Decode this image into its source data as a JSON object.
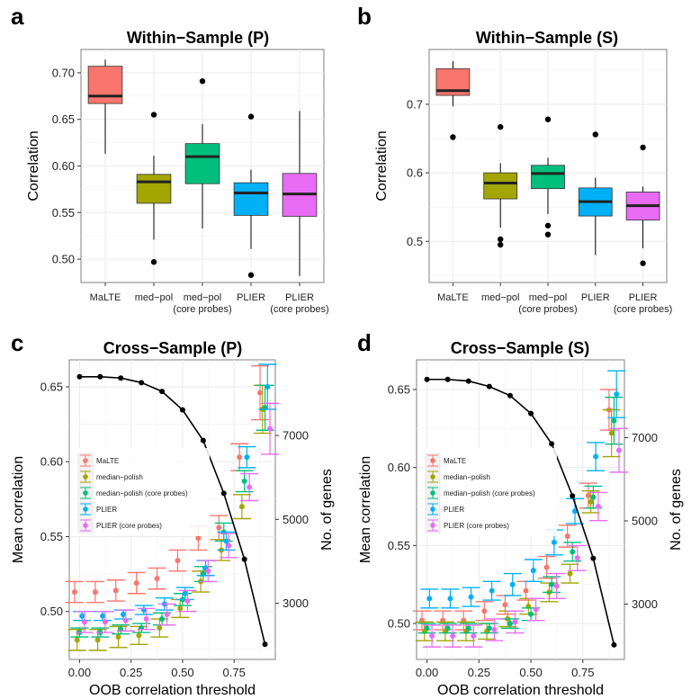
{
  "chart_data": [
    {
      "panel": "a",
      "type": "box",
      "title": "Within−Sample (P)",
      "ylabel": "Correlation",
      "ylim": [
        0.475,
        0.725
      ],
      "yticks": [
        "0.50",
        "0.55",
        "0.60",
        "0.65",
        "0.70"
      ],
      "categories": [
        [
          "MaLTE"
        ],
        [
          "med−pol"
        ],
        [
          "med−pol",
          "(core probes)"
        ],
        [
          "PLIER"
        ],
        [
          "PLIER",
          "(core probes)"
        ]
      ],
      "boxes": [
        {
          "color": "#F8766D",
          "whislo": 0.613,
          "q1": 0.667,
          "med": 0.675,
          "q3": 0.707,
          "whishi": 0.714,
          "outliers": []
        },
        {
          "color": "#A3A500",
          "whislo": 0.521,
          "q1": 0.56,
          "med": 0.583,
          "q3": 0.591,
          "whishi": 0.611,
          "outliers": [
            0.655,
            0.497
          ]
        },
        {
          "color": "#00BF7D",
          "whislo": 0.533,
          "q1": 0.581,
          "med": 0.61,
          "q3": 0.624,
          "whishi": 0.645,
          "outliers": [
            0.691
          ]
        },
        {
          "color": "#00B0F6",
          "whislo": 0.511,
          "q1": 0.547,
          "med": 0.571,
          "q3": 0.582,
          "whishi": 0.596,
          "outliers": [
            0.653,
            0.483
          ]
        },
        {
          "color": "#E76BF3",
          "whislo": 0.482,
          "q1": 0.546,
          "med": 0.57,
          "q3": 0.592,
          "whishi": 0.659,
          "outliers": []
        }
      ]
    },
    {
      "panel": "b",
      "type": "box",
      "title": "Within−Sample (S)",
      "ylabel": "Correlation",
      "ylim": [
        0.44,
        0.78
      ],
      "yticks": [
        "0.5",
        "0.6",
        "0.7"
      ],
      "categories": [
        [
          "MaLTE"
        ],
        [
          "med−pol"
        ],
        [
          "med−pol",
          "(core probes)"
        ],
        [
          "PLIER"
        ],
        [
          "PLIER",
          "(core probes)"
        ]
      ],
      "boxes": [
        {
          "color": "#F8766D",
          "whislo": 0.697,
          "q1": 0.713,
          "med": 0.72,
          "q3": 0.752,
          "whishi": 0.763,
          "outliers": [
            0.652
          ]
        },
        {
          "color": "#A3A500",
          "whislo": 0.52,
          "q1": 0.562,
          "med": 0.585,
          "q3": 0.6,
          "whishi": 0.614,
          "outliers": [
            0.667,
            0.503,
            0.495
          ]
        },
        {
          "color": "#00BF7D",
          "whislo": 0.54,
          "q1": 0.577,
          "med": 0.599,
          "q3": 0.611,
          "whishi": 0.622,
          "outliers": [
            0.678,
            0.523,
            0.51
          ]
        },
        {
          "color": "#00B0F6",
          "whislo": 0.48,
          "q1": 0.537,
          "med": 0.558,
          "q3": 0.578,
          "whishi": 0.593,
          "outliers": [
            0.656
          ]
        },
        {
          "color": "#E76BF3",
          "whislo": 0.49,
          "q1": 0.531,
          "med": 0.552,
          "q3": 0.572,
          "whishi": 0.58,
          "outliers": [
            0.637,
            0.468
          ]
        }
      ]
    },
    {
      "panel": "c",
      "type": "scatter",
      "title": "Cross−Sample (P)",
      "xlabel": "OOB correlation threshold",
      "ylabel": "Mean correlation",
      "y2label": "No. of genes",
      "xlim": [
        -0.05,
        0.95
      ],
      "ylim": [
        0.468,
        0.668
      ],
      "xticks": [
        "0.00",
        "0.25",
        "0.50",
        "0.75"
      ],
      "yticks": [
        "0.50",
        "0.55",
        "0.60",
        "0.65"
      ],
      "y2ticks": [
        "3000",
        "5000",
        "7000"
      ],
      "y2range": [
        1662,
        8803
      ],
      "x": [
        0.0,
        0.1,
        0.2,
        0.3,
        0.4,
        0.5,
        0.6,
        0.7,
        0.8,
        0.9
      ],
      "series": [
        {
          "name": "MaLTE",
          "color": "#F8766D",
          "values": [
            0.513,
            0.513,
            0.514,
            0.519,
            0.522,
            0.534,
            0.549,
            0.556,
            0.603,
            0.646
          ],
          "errors": [
            0.007,
            0.007,
            0.007,
            0.007,
            0.007,
            0.007,
            0.008,
            0.008,
            0.009,
            0.018
          ]
        },
        {
          "name": "median−polish",
          "color": "#A3A500",
          "values": [
            0.481,
            0.481,
            0.483,
            0.484,
            0.489,
            0.502,
            0.52,
            0.541,
            0.57,
            0.635
          ],
          "errors": [
            0.007,
            0.007,
            0.007,
            0.006,
            0.006,
            0.006,
            0.007,
            0.007,
            0.008,
            0.016
          ]
        },
        {
          "name": "median−polish (core probes)",
          "color": "#00BF7D",
          "values": [
            0.486,
            0.486,
            0.488,
            0.489,
            0.495,
            0.508,
            0.525,
            0.553,
            0.587,
            0.636
          ],
          "errors": [
            0.003,
            0.003,
            0.003,
            0.003,
            0.004,
            0.004,
            0.005,
            0.006,
            0.007,
            0.015
          ]
        },
        {
          "name": "PLIER",
          "color": "#00B0F6",
          "values": [
            0.497,
            0.497,
            0.498,
            0.501,
            0.505,
            0.512,
            0.529,
            0.547,
            0.603,
            0.65
          ],
          "errors": [
            0.003,
            0.003,
            0.003,
            0.003,
            0.004,
            0.004,
            0.005,
            0.006,
            0.007,
            0.015
          ]
        },
        {
          "name": "PLIER (core probes)",
          "color": "#E76BF3",
          "values": [
            0.493,
            0.493,
            0.494,
            0.495,
            0.498,
            0.507,
            0.527,
            0.544,
            0.583,
            0.622
          ],
          "errors": [
            0.007,
            0.007,
            0.007,
            0.007,
            0.007,
            0.007,
            0.007,
            0.008,
            0.009,
            0.017
          ]
        },
        {
          "name": "",
          "color": "#000000",
          "axis": "right",
          "line": true,
          "values": [
            8400,
            8400,
            8370,
            8260,
            8050,
            7610,
            6880,
            5620,
            4050,
            2020
          ]
        }
      ],
      "legend": {
        "position": "left",
        "entries": [
          "MaLTE",
          "median−polish",
          "median−polish (core probes)",
          "PLIER",
          "PLIER (core probes)"
        ]
      }
    },
    {
      "panel": "d",
      "type": "scatter",
      "title": "Cross−Sample (S)",
      "xlabel": "OOB correlation threshold",
      "ylabel": "Mean correlation",
      "y2label": "No. of genes",
      "xlim": [
        -0.05,
        0.95
      ],
      "ylim": [
        0.477,
        0.669
      ],
      "xticks": [
        "0.00",
        "0.25",
        "0.50",
        "0.75"
      ],
      "yticks": [
        "0.50",
        "0.55",
        "0.60",
        "0.65"
      ],
      "y2ticks": [
        "3000",
        "5000",
        "7000"
      ],
      "y2range": [
        1670,
        8870
      ],
      "x": [
        0.0,
        0.1,
        0.2,
        0.3,
        0.4,
        0.5,
        0.6,
        0.7,
        0.8,
        0.9
      ],
      "series": [
        {
          "name": "MaLTE",
          "color": "#F8766D",
          "values": [
            0.502,
            0.502,
            0.502,
            0.508,
            0.512,
            0.521,
            0.536,
            0.556,
            0.582,
            0.637
          ],
          "errors": [
            0.006,
            0.006,
            0.006,
            0.006,
            0.006,
            0.006,
            0.007,
            0.007,
            0.008,
            0.013
          ]
        },
        {
          "name": "median−polish",
          "color": "#A3A500",
          "values": [
            0.495,
            0.495,
            0.495,
            0.495,
            0.503,
            0.511,
            0.52,
            0.532,
            0.578,
            0.622
          ],
          "errors": [
            0.006,
            0.006,
            0.006,
            0.005,
            0.005,
            0.005,
            0.006,
            0.006,
            0.007,
            0.015
          ]
        },
        {
          "name": "median−polish (core probes)",
          "color": "#00BF7D",
          "values": [
            0.497,
            0.497,
            0.497,
            0.497,
            0.5,
            0.506,
            0.525,
            0.546,
            0.581,
            0.63
          ],
          "errors": [
            0.003,
            0.003,
            0.003,
            0.003,
            0.003,
            0.004,
            0.005,
            0.006,
            0.007,
            0.015
          ]
        },
        {
          "name": "PLIER",
          "color": "#00B0F6",
          "values": [
            0.516,
            0.516,
            0.517,
            0.521,
            0.525,
            0.534,
            0.552,
            0.572,
            0.607,
            0.647
          ],
          "errors": [
            0.006,
            0.006,
            0.006,
            0.006,
            0.007,
            0.007,
            0.008,
            0.008,
            0.009,
            0.015
          ]
        },
        {
          "name": "PLIER (core probes)",
          "color": "#E76BF3",
          "values": [
            0.492,
            0.492,
            0.492,
            0.496,
            0.501,
            0.509,
            0.524,
            0.542,
            0.575,
            0.611
          ],
          "errors": [
            0.007,
            0.007,
            0.007,
            0.007,
            0.007,
            0.007,
            0.008,
            0.008,
            0.009,
            0.014
          ]
        },
        {
          "name": "",
          "color": "#000000",
          "axis": "right",
          "line": true,
          "values": [
            8400,
            8400,
            8360,
            8230,
            8010,
            7580,
            6850,
            5600,
            4100,
            2020
          ]
        }
      ],
      "legend": {
        "position": "left",
        "entries": [
          "MaLTE",
          "median−polish",
          "median−polish (core probes)",
          "PLIER",
          "PLIER (core probes)"
        ]
      }
    }
  ]
}
